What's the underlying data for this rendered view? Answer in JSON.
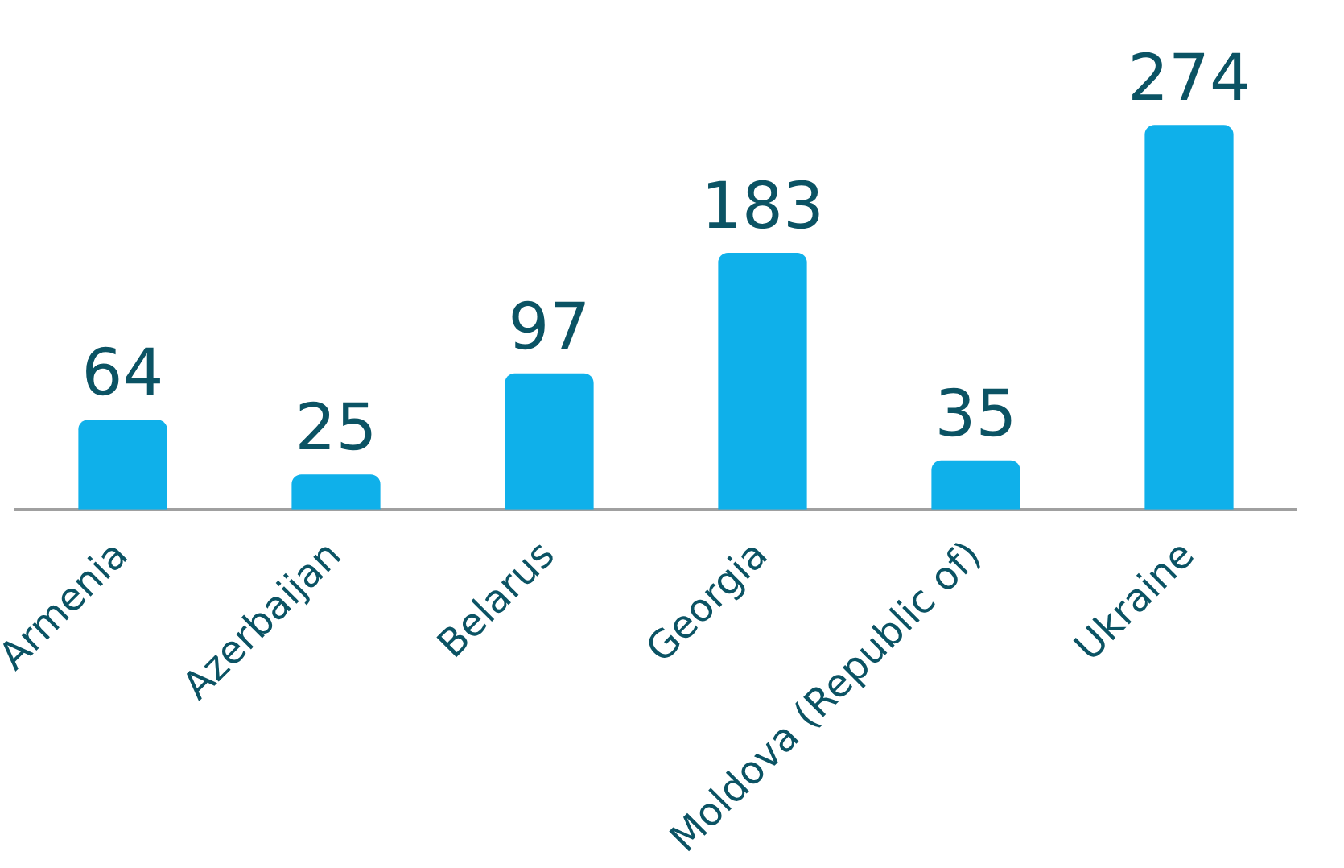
{
  "chart_data": {
    "type": "bar",
    "categories": [
      "Armenia",
      "Azerbaijan",
      "Belarus",
      "Georgia",
      "Moldova (Republic of)",
      "Ukraine"
    ],
    "values": [
      64,
      25,
      97,
      183,
      35,
      274
    ],
    "color": "#0fb0ea",
    "data_labels": true,
    "grid": false,
    "legend": false,
    "tick_labels": "x"
  }
}
